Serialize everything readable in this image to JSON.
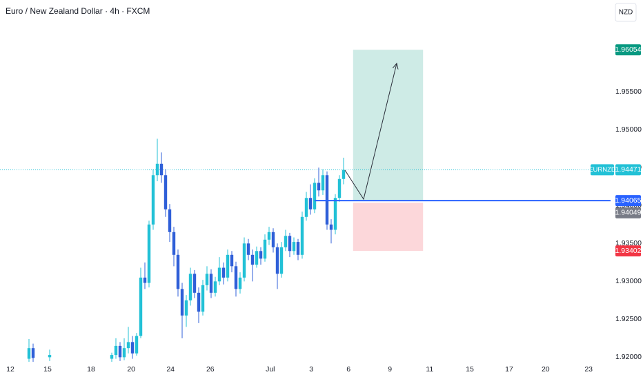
{
  "header": {
    "title": "Euro / New Zealand Dollar · 4h · FXCM",
    "currency": "NZD"
  },
  "chart_data": {
    "type": "candlestick",
    "symbol": "EURNZD",
    "x": [
      7,
      8,
      12,
      27,
      28,
      29,
      30,
      31,
      32,
      33,
      34,
      35,
      36,
      37,
      38,
      39,
      40,
      41,
      42,
      43,
      44,
      45,
      46,
      47,
      48,
      49,
      50,
      51,
      52,
      53,
      54,
      55,
      56,
      57,
      58,
      59,
      60,
      61,
      62,
      63,
      64,
      65,
      66,
      67,
      68,
      69,
      70,
      71,
      72,
      73,
      74,
      75,
      76,
      77,
      78,
      79,
      80,
      81,
      82,
      83
    ],
    "open": [
      1.9198,
      1.9212,
      1.92,
      1.9198,
      1.9203,
      1.9215,
      1.92,
      1.9212,
      1.922,
      1.9205,
      1.9228,
      1.9305,
      1.9298,
      1.9375,
      1.944,
      1.9455,
      1.944,
      1.9395,
      1.9365,
      1.9335,
      1.929,
      1.9255,
      1.9275,
      1.931,
      1.9285,
      1.926,
      1.9295,
      1.931,
      1.9285,
      1.93,
      1.9318,
      1.9305,
      1.9335,
      1.932,
      1.929,
      1.9305,
      1.935,
      1.9335,
      1.9322,
      1.934,
      1.933,
      1.9355,
      1.9365,
      1.9345,
      1.931,
      1.9345,
      1.936,
      1.934,
      1.9352,
      1.9335,
      1.9385,
      1.941,
      1.9395,
      1.943,
      1.942,
      1.944,
      1.9375,
      1.9368,
      1.941,
      1.9435
    ],
    "high": [
      1.9224,
      1.9218,
      1.921,
      1.9206,
      1.9225,
      1.922,
      1.9225,
      1.924,
      1.9228,
      1.9232,
      1.9318,
      1.9325,
      1.938,
      1.9448,
      1.9488,
      1.947,
      1.9448,
      1.9402,
      1.9372,
      1.9342,
      1.9298,
      1.9282,
      1.9318,
      1.9315,
      1.9292,
      1.9302,
      1.932,
      1.9316,
      1.9306,
      1.9332,
      1.9325,
      1.9342,
      1.934,
      1.9326,
      1.9312,
      1.9358,
      1.9356,
      1.9342,
      1.9346,
      1.9345,
      1.9362,
      1.9372,
      1.937,
      1.935,
      1.9352,
      1.9368,
      1.9364,
      1.9358,
      1.9356,
      1.9392,
      1.9418,
      1.9428,
      1.9436,
      1.945,
      1.9448,
      1.9445,
      1.9382,
      1.9415,
      1.944,
      1.9463
    ],
    "low": [
      1.919,
      1.919,
      1.9195,
      1.9192,
      1.9198,
      1.9195,
      1.9196,
      1.9205,
      1.9198,
      1.9202,
      1.9225,
      1.929,
      1.9292,
      1.9368,
      1.9432,
      1.943,
      1.9385,
      1.9352,
      1.932,
      1.928,
      1.9225,
      1.924,
      1.9268,
      1.9278,
      1.9245,
      1.9255,
      1.9288,
      1.9278,
      1.928,
      1.9295,
      1.9296,
      1.93,
      1.9312,
      1.928,
      1.9284,
      1.93,
      1.9328,
      1.93,
      1.9318,
      1.9322,
      1.9326,
      1.9348,
      1.9338,
      1.929,
      1.9305,
      1.934,
      1.9332,
      1.9335,
      1.9328,
      1.933,
      1.938,
      1.9388,
      1.939,
      1.9412,
      1.9414,
      1.9368,
      1.935,
      1.9362,
      1.9405,
      1.9428
    ],
    "close": [
      1.9212,
      1.9199,
      1.9203,
      1.9203,
      1.9215,
      1.92,
      1.9212,
      1.922,
      1.9205,
      1.9228,
      1.9305,
      1.9298,
      1.9375,
      1.944,
      1.9455,
      1.944,
      1.9395,
      1.9365,
      1.9335,
      1.929,
      1.9255,
      1.9275,
      1.931,
      1.9285,
      1.926,
      1.9295,
      1.931,
      1.9285,
      1.93,
      1.9318,
      1.9305,
      1.9335,
      1.932,
      1.929,
      1.9305,
      1.935,
      1.9335,
      1.9322,
      1.934,
      1.933,
      1.9355,
      1.9365,
      1.9345,
      1.931,
      1.9345,
      1.936,
      1.934,
      1.9352,
      1.9335,
      1.9385,
      1.941,
      1.9395,
      1.943,
      1.942,
      1.944,
      1.9375,
      1.9368,
      1.941,
      1.9435,
      1.9447
    ],
    "up_color": "#22c1d6",
    "down_color": "#2f5fd8",
    "xlim": [
      0,
      147.5
    ],
    "xticks": [
      {
        "value": 2.5,
        "label": "12"
      },
      {
        "value": 11.5,
        "label": "15"
      },
      {
        "value": 22,
        "label": "18"
      },
      {
        "value": 31.7,
        "label": "20"
      },
      {
        "value": 41.2,
        "label": "24"
      },
      {
        "value": 50.8,
        "label": "26"
      },
      {
        "value": 65.3,
        "label": "Jul"
      },
      {
        "value": 75.2,
        "label": "3"
      },
      {
        "value": 84.2,
        "label": "6"
      },
      {
        "value": 94.2,
        "label": "9"
      },
      {
        "value": 103.8,
        "label": "11"
      },
      {
        "value": 113.5,
        "label": "15"
      },
      {
        "value": 123,
        "label": "17"
      },
      {
        "value": 131.8,
        "label": "20"
      },
      {
        "value": 142.2,
        "label": "23"
      }
    ],
    "ylim": [
      1.9194,
      1.9671
    ],
    "yticks": [
      {
        "value": 1.92,
        "label": "1.92000"
      },
      {
        "value": 1.925,
        "label": "1.92500"
      },
      {
        "value": 1.93,
        "label": "1.93000"
      },
      {
        "value": 1.935,
        "label": "1.93500"
      },
      {
        "value": 1.94,
        "label": "1.94000"
      },
      {
        "value": 1.945,
        "label": "1.94500"
      },
      {
        "value": 1.95,
        "label": "1.95000"
      },
      {
        "value": 1.955,
        "label": "1.95500"
      }
    ],
    "last_price": 1.94471,
    "marker_price": 1.94049,
    "position": {
      "entry": 1.94065,
      "target": 1.96054,
      "stop": 1.93402,
      "x_start": 85.3,
      "x_end": 102.2,
      "entry_line_start": 76
    }
  }
}
